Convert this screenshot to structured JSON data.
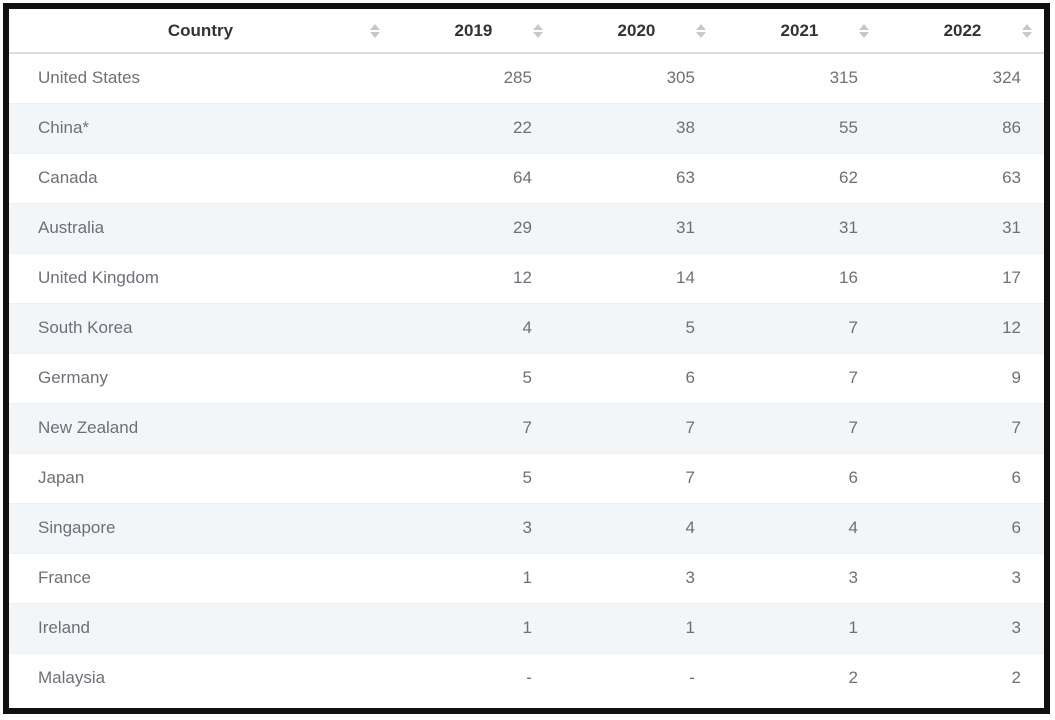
{
  "chart_data": {
    "type": "table",
    "columns": [
      "Country",
      "2019",
      "2020",
      "2021",
      "2022"
    ],
    "rows": [
      {
        "country": "United States",
        "values": [
          "285",
          "305",
          "315",
          "324"
        ]
      },
      {
        "country": "China*",
        "values": [
          "22",
          "38",
          "55",
          "86"
        ]
      },
      {
        "country": "Canada",
        "values": [
          "64",
          "63",
          "62",
          "63"
        ]
      },
      {
        "country": "Australia",
        "values": [
          "29",
          "31",
          "31",
          "31"
        ]
      },
      {
        "country": "United Kingdom",
        "values": [
          "12",
          "14",
          "16",
          "17"
        ]
      },
      {
        "country": "South Korea",
        "values": [
          "4",
          "5",
          "7",
          "12"
        ]
      },
      {
        "country": "Germany",
        "values": [
          "5",
          "6",
          "7",
          "9"
        ]
      },
      {
        "country": "New Zealand",
        "values": [
          "7",
          "7",
          "7",
          "7"
        ]
      },
      {
        "country": "Japan",
        "values": [
          "5",
          "7",
          "6",
          "6"
        ]
      },
      {
        "country": "Singapore",
        "values": [
          "3",
          "4",
          "4",
          "6"
        ]
      },
      {
        "country": "France",
        "values": [
          "1",
          "3",
          "3",
          "3"
        ]
      },
      {
        "country": "Ireland",
        "values": [
          "1",
          "1",
          "1",
          "3"
        ]
      },
      {
        "country": "Malaysia",
        "values": [
          "-",
          "-",
          "2",
          "2"
        ]
      }
    ]
  },
  "icons": {
    "sort_icon": "up-down-sort-arrows"
  },
  "colors": {
    "frame_border": "#101010",
    "header_text": "#333333",
    "body_text": "#6d7177",
    "row_stripe": "#f2f6f9",
    "header_divider": "#dcdcdc",
    "row_divider": "#eef1f4",
    "sort_icon": "#c6c9cc"
  }
}
